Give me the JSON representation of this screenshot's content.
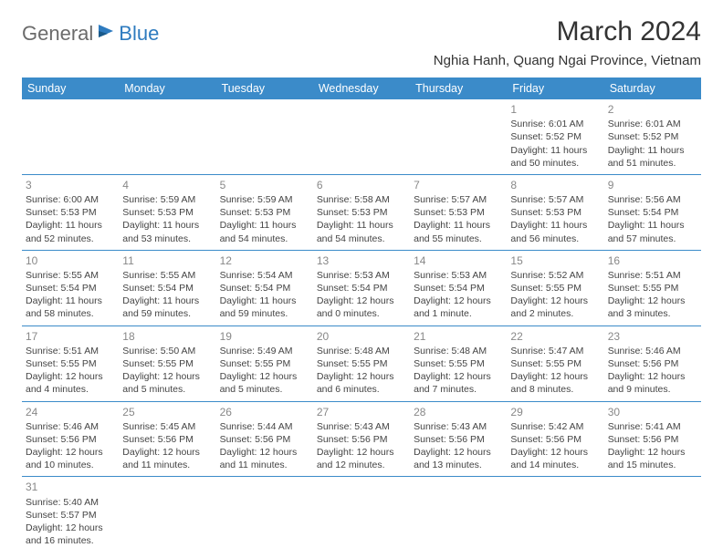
{
  "brand": {
    "part1": "General",
    "part2": "Blue"
  },
  "title": "March 2024",
  "location": "Nghia Hanh, Quang Ngai Province, Vietnam",
  "header_bg": "#3b8bc9",
  "header_fg": "#ffffff",
  "rule_color": "#3b8bc9",
  "daynum_color": "#888888",
  "text_color": "#444444",
  "weekdays": [
    "Sunday",
    "Monday",
    "Tuesday",
    "Wednesday",
    "Thursday",
    "Friday",
    "Saturday"
  ],
  "weeks": [
    [
      null,
      null,
      null,
      null,
      null,
      {
        "d": "1",
        "sr": "Sunrise: 6:01 AM",
        "ss": "Sunset: 5:52 PM",
        "dl1": "Daylight: 11 hours",
        "dl2": "and 50 minutes."
      },
      {
        "d": "2",
        "sr": "Sunrise: 6:01 AM",
        "ss": "Sunset: 5:52 PM",
        "dl1": "Daylight: 11 hours",
        "dl2": "and 51 minutes."
      }
    ],
    [
      {
        "d": "3",
        "sr": "Sunrise: 6:00 AM",
        "ss": "Sunset: 5:53 PM",
        "dl1": "Daylight: 11 hours",
        "dl2": "and 52 minutes."
      },
      {
        "d": "4",
        "sr": "Sunrise: 5:59 AM",
        "ss": "Sunset: 5:53 PM",
        "dl1": "Daylight: 11 hours",
        "dl2": "and 53 minutes."
      },
      {
        "d": "5",
        "sr": "Sunrise: 5:59 AM",
        "ss": "Sunset: 5:53 PM",
        "dl1": "Daylight: 11 hours",
        "dl2": "and 54 minutes."
      },
      {
        "d": "6",
        "sr": "Sunrise: 5:58 AM",
        "ss": "Sunset: 5:53 PM",
        "dl1": "Daylight: 11 hours",
        "dl2": "and 54 minutes."
      },
      {
        "d": "7",
        "sr": "Sunrise: 5:57 AM",
        "ss": "Sunset: 5:53 PM",
        "dl1": "Daylight: 11 hours",
        "dl2": "and 55 minutes."
      },
      {
        "d": "8",
        "sr": "Sunrise: 5:57 AM",
        "ss": "Sunset: 5:53 PM",
        "dl1": "Daylight: 11 hours",
        "dl2": "and 56 minutes."
      },
      {
        "d": "9",
        "sr": "Sunrise: 5:56 AM",
        "ss": "Sunset: 5:54 PM",
        "dl1": "Daylight: 11 hours",
        "dl2": "and 57 minutes."
      }
    ],
    [
      {
        "d": "10",
        "sr": "Sunrise: 5:55 AM",
        "ss": "Sunset: 5:54 PM",
        "dl1": "Daylight: 11 hours",
        "dl2": "and 58 minutes."
      },
      {
        "d": "11",
        "sr": "Sunrise: 5:55 AM",
        "ss": "Sunset: 5:54 PM",
        "dl1": "Daylight: 11 hours",
        "dl2": "and 59 minutes."
      },
      {
        "d": "12",
        "sr": "Sunrise: 5:54 AM",
        "ss": "Sunset: 5:54 PM",
        "dl1": "Daylight: 11 hours",
        "dl2": "and 59 minutes."
      },
      {
        "d": "13",
        "sr": "Sunrise: 5:53 AM",
        "ss": "Sunset: 5:54 PM",
        "dl1": "Daylight: 12 hours",
        "dl2": "and 0 minutes."
      },
      {
        "d": "14",
        "sr": "Sunrise: 5:53 AM",
        "ss": "Sunset: 5:54 PM",
        "dl1": "Daylight: 12 hours",
        "dl2": "and 1 minute."
      },
      {
        "d": "15",
        "sr": "Sunrise: 5:52 AM",
        "ss": "Sunset: 5:55 PM",
        "dl1": "Daylight: 12 hours",
        "dl2": "and 2 minutes."
      },
      {
        "d": "16",
        "sr": "Sunrise: 5:51 AM",
        "ss": "Sunset: 5:55 PM",
        "dl1": "Daylight: 12 hours",
        "dl2": "and 3 minutes."
      }
    ],
    [
      {
        "d": "17",
        "sr": "Sunrise: 5:51 AM",
        "ss": "Sunset: 5:55 PM",
        "dl1": "Daylight: 12 hours",
        "dl2": "and 4 minutes."
      },
      {
        "d": "18",
        "sr": "Sunrise: 5:50 AM",
        "ss": "Sunset: 5:55 PM",
        "dl1": "Daylight: 12 hours",
        "dl2": "and 5 minutes."
      },
      {
        "d": "19",
        "sr": "Sunrise: 5:49 AM",
        "ss": "Sunset: 5:55 PM",
        "dl1": "Daylight: 12 hours",
        "dl2": "and 5 minutes."
      },
      {
        "d": "20",
        "sr": "Sunrise: 5:48 AM",
        "ss": "Sunset: 5:55 PM",
        "dl1": "Daylight: 12 hours",
        "dl2": "and 6 minutes."
      },
      {
        "d": "21",
        "sr": "Sunrise: 5:48 AM",
        "ss": "Sunset: 5:55 PM",
        "dl1": "Daylight: 12 hours",
        "dl2": "and 7 minutes."
      },
      {
        "d": "22",
        "sr": "Sunrise: 5:47 AM",
        "ss": "Sunset: 5:55 PM",
        "dl1": "Daylight: 12 hours",
        "dl2": "and 8 minutes."
      },
      {
        "d": "23",
        "sr": "Sunrise: 5:46 AM",
        "ss": "Sunset: 5:56 PM",
        "dl1": "Daylight: 12 hours",
        "dl2": "and 9 minutes."
      }
    ],
    [
      {
        "d": "24",
        "sr": "Sunrise: 5:46 AM",
        "ss": "Sunset: 5:56 PM",
        "dl1": "Daylight: 12 hours",
        "dl2": "and 10 minutes."
      },
      {
        "d": "25",
        "sr": "Sunrise: 5:45 AM",
        "ss": "Sunset: 5:56 PM",
        "dl1": "Daylight: 12 hours",
        "dl2": "and 11 minutes."
      },
      {
        "d": "26",
        "sr": "Sunrise: 5:44 AM",
        "ss": "Sunset: 5:56 PM",
        "dl1": "Daylight: 12 hours",
        "dl2": "and 11 minutes."
      },
      {
        "d": "27",
        "sr": "Sunrise: 5:43 AM",
        "ss": "Sunset: 5:56 PM",
        "dl1": "Daylight: 12 hours",
        "dl2": "and 12 minutes."
      },
      {
        "d": "28",
        "sr": "Sunrise: 5:43 AM",
        "ss": "Sunset: 5:56 PM",
        "dl1": "Daylight: 12 hours",
        "dl2": "and 13 minutes."
      },
      {
        "d": "29",
        "sr": "Sunrise: 5:42 AM",
        "ss": "Sunset: 5:56 PM",
        "dl1": "Daylight: 12 hours",
        "dl2": "and 14 minutes."
      },
      {
        "d": "30",
        "sr": "Sunrise: 5:41 AM",
        "ss": "Sunset: 5:56 PM",
        "dl1": "Daylight: 12 hours",
        "dl2": "and 15 minutes."
      }
    ],
    [
      {
        "d": "31",
        "sr": "Sunrise: 5:40 AM",
        "ss": "Sunset: 5:57 PM",
        "dl1": "Daylight: 12 hours",
        "dl2": "and 16 minutes."
      },
      null,
      null,
      null,
      null,
      null,
      null
    ]
  ]
}
